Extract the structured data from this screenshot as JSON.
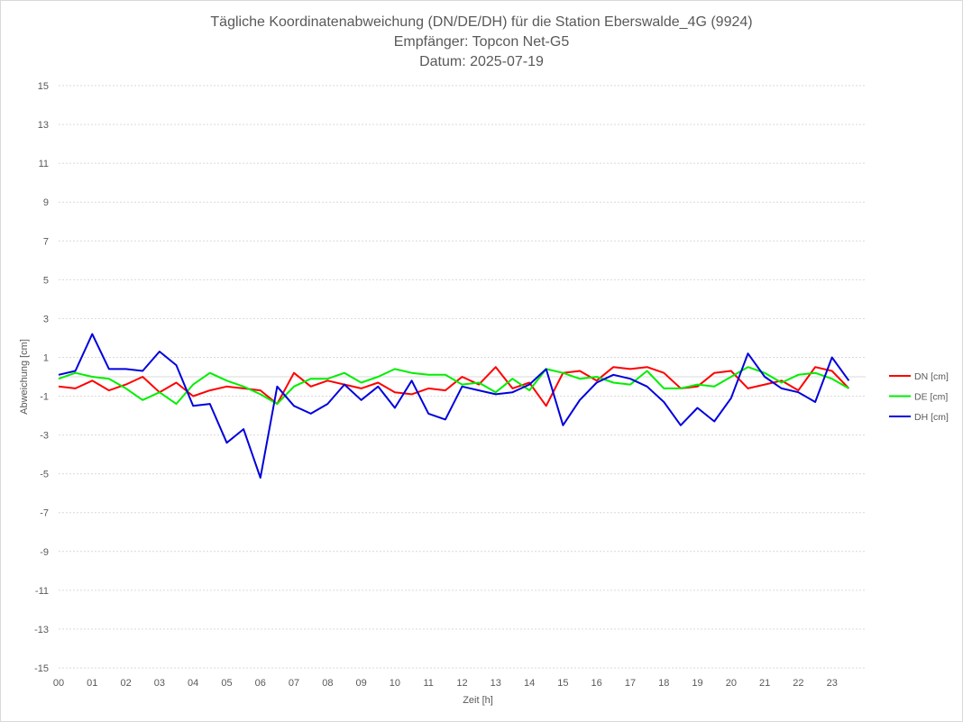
{
  "chart_data": {
    "type": "line",
    "title_lines": [
      "Tägliche Koordinatenabweichung (DN/DE/DH) für die Station Eberswalde_4G (9924)",
      "Empfänger: Topcon Net-G5",
      "Datum: 2025-07-19"
    ],
    "xlabel": "Zeit [h]",
    "ylabel": "Abweichung [cm]",
    "ylim": [
      -15,
      15
    ],
    "yticks": [
      15,
      13,
      11,
      9,
      7,
      5,
      3,
      1,
      -1,
      -3,
      -5,
      -7,
      -9,
      -11,
      -13,
      -15
    ],
    "yticklabels": [
      "15",
      "13",
      "11",
      "9",
      "7",
      "5",
      "3",
      "1",
      "-1",
      "-3",
      "-5",
      "-7",
      "-9",
      "-11",
      "-13",
      "-15"
    ],
    "xlim": [
      0,
      24
    ],
    "xticklabels": [
      "00",
      "01",
      "02",
      "03",
      "04",
      "05",
      "06",
      "07",
      "08",
      "09",
      "10",
      "11",
      "12",
      "13",
      "14",
      "15",
      "16",
      "17",
      "18",
      "19",
      "20",
      "21",
      "22",
      "23"
    ],
    "grid": true,
    "legend_position": "right",
    "series": [
      {
        "name": "DN [cm]",
        "color": "#ff0000",
        "x_interval_h": 0.5,
        "values": [
          -0.5,
          -0.6,
          -0.2,
          -0.7,
          -0.4,
          0,
          -0.8,
          -0.3,
          -1,
          -0.7,
          -0.5,
          -0.6,
          -0.7,
          -1.4,
          0.2,
          -0.5,
          -0.2,
          -0.4,
          -0.6,
          -0.3,
          -0.8,
          -0.9,
          -0.6,
          -0.7,
          0,
          -0.4,
          0.5,
          -0.6,
          -0.3,
          -1.5,
          0.2,
          0.3,
          -0.2,
          0.5,
          0.4,
          0.5,
          0.2,
          -0.6,
          -0.5,
          0.2,
          0.3,
          -0.6,
          -0.4,
          -0.2,
          -0.7,
          0.5,
          0.3,
          -0.6
        ]
      },
      {
        "name": "DE [cm]",
        "color": "#00ee00",
        "x_interval_h": 0.5,
        "values": [
          -0.1,
          0.2,
          0,
          -0.1,
          -0.6,
          -1.2,
          -0.8,
          -1.4,
          -0.4,
          0.2,
          -0.2,
          -0.5,
          -0.9,
          -1.4,
          -0.5,
          -0.1,
          -0.1,
          0.2,
          -0.3,
          0,
          0.4,
          0.2,
          0.1,
          0.1,
          -0.4,
          -0.3,
          -0.8,
          -0.1,
          -0.7,
          0.4,
          0.2,
          -0.1,
          0,
          -0.3,
          -0.4,
          0.3,
          -0.6,
          -0.6,
          -0.4,
          -0.5,
          0,
          0.5,
          0.2,
          -0.3,
          0.1,
          0.2,
          -0.1,
          -0.6
        ]
      },
      {
        "name": "DH [cm]",
        "color": "#0000dd",
        "x_interval_h": 0.5,
        "values": [
          0.1,
          0.3,
          2.2,
          0.4,
          0.4,
          0.3,
          1.3,
          0.6,
          -1.5,
          -1.4,
          -3.4,
          -2.7,
          -5.2,
          -0.5,
          -1.5,
          -1.9,
          -1.4,
          -0.4,
          -1.2,
          -0.5,
          -1.6,
          -0.2,
          -1.9,
          -2.2,
          -0.5,
          -0.7,
          -0.9,
          -0.8,
          -0.4,
          0.4,
          -2.5,
          -1.2,
          -0.3,
          0.1,
          -0.1,
          -0.5,
          -1.3,
          -2.5,
          -1.6,
          -2.3,
          -1.1,
          1.2,
          0,
          -0.6,
          -0.8,
          -1.3,
          1,
          -0.2
        ]
      }
    ]
  }
}
